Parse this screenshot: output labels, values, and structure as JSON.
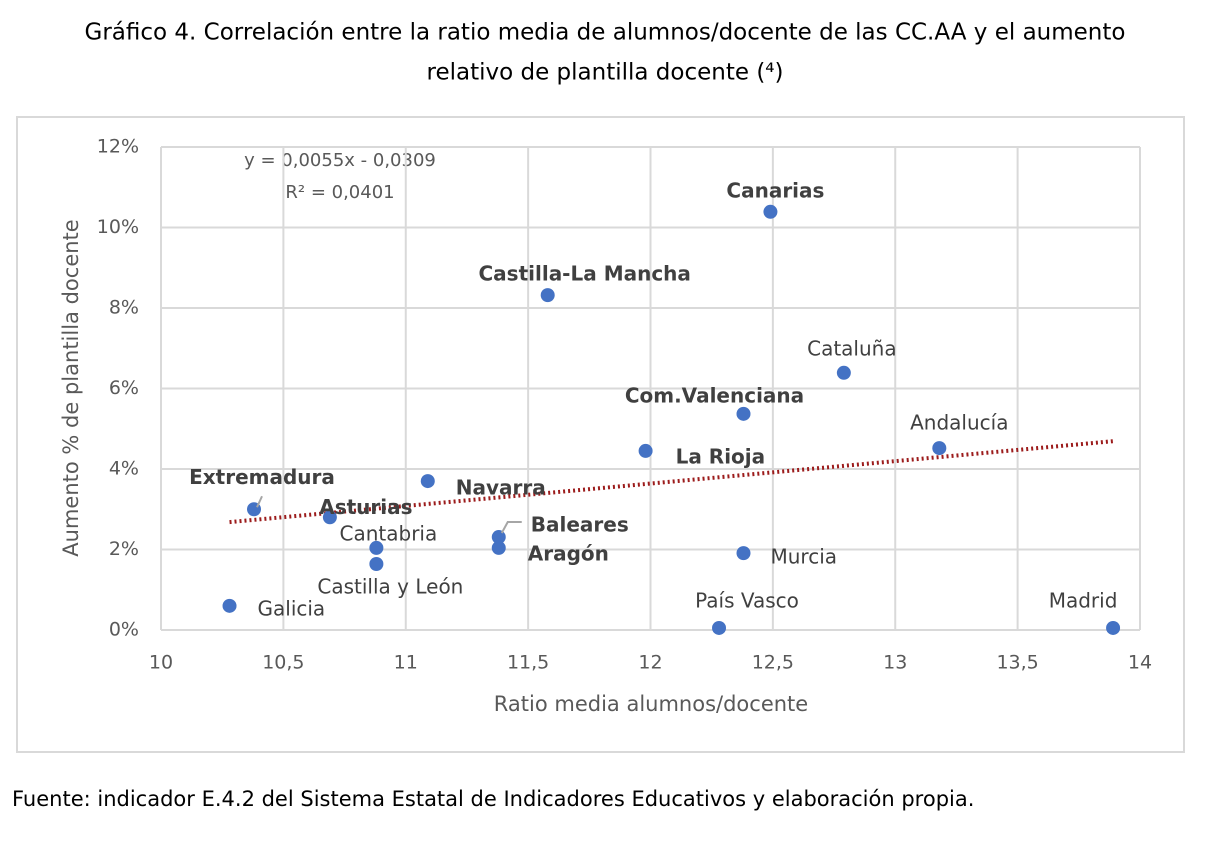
{
  "title": [
    "Gráfico 4. Correlación entre la ratio media de alumnos/docente de las CC.AA y el aumento",
    "relativo de plantilla docente (⁴)"
  ],
  "chart_data": {
    "type": "scatter",
    "xlabel": "Ratio media alumnos/docente",
    "ylabel": "Aumento % de plantilla docente",
    "annotations": [
      "y = 0,0055x - 0,0309",
      "R² = 0,0401"
    ],
    "labels": [
      "Galicia",
      "Extremadura",
      "Asturias",
      "Cantabria",
      "Castilla y León",
      "Navarra",
      "Baleares",
      "Aragón",
      "Castilla-La Mancha",
      "La Rioja",
      "País Vasco",
      "Com.Valenciana",
      "Murcia",
      "Canarias",
      "Cataluña",
      "Andalucía",
      "Madrid"
    ],
    "bold_labels": [
      false,
      true,
      true,
      false,
      false,
      true,
      true,
      true,
      true,
      true,
      false,
      true,
      false,
      true,
      false,
      false,
      false
    ],
    "x": [
      10.28,
      10.38,
      10.69,
      10.88,
      10.88,
      11.09,
      11.38,
      11.38,
      11.58,
      11.98,
      12.28,
      12.38,
      12.38,
      12.49,
      12.79,
      13.18,
      13.89
    ],
    "values": [
      0.6,
      3.0,
      2.8,
      2.04,
      1.64,
      3.7,
      2.31,
      2.04,
      8.32,
      4.45,
      0.05,
      5.37,
      1.91,
      10.39,
      6.39,
      4.52,
      0.05
    ],
    "color": "#4472c4",
    "trendline": true,
    "trendline_color": "#9c1c1c",
    "xlim": [
      10,
      14
    ],
    "xticks": [
      10,
      {
        "value": 10.5,
        "label": "10,5"
      },
      11,
      {
        "value": 11.5,
        "label": "11,5"
      },
      12,
      {
        "value": 12.5,
        "label": "12,5"
      },
      13,
      {
        "value": 13.5,
        "label": "13,5"
      },
      14
    ],
    "ylim": [
      0,
      12
    ],
    "yticks": [
      {
        "value": 0,
        "label": "0%"
      },
      {
        "value": 2,
        "label": "2%"
      },
      {
        "value": 4,
        "label": "4%"
      },
      {
        "value": 6,
        "label": "6%"
      },
      {
        "value": 8,
        "label": "8%"
      },
      {
        "value": 10,
        "label": "10%"
      },
      {
        "value": 12,
        "label": "12%"
      }
    ],
    "grid": true
  },
  "source": "Fuente: indicador E.4.2 del Sistema Estatal de Indicadores Educativos y elaboración propia."
}
